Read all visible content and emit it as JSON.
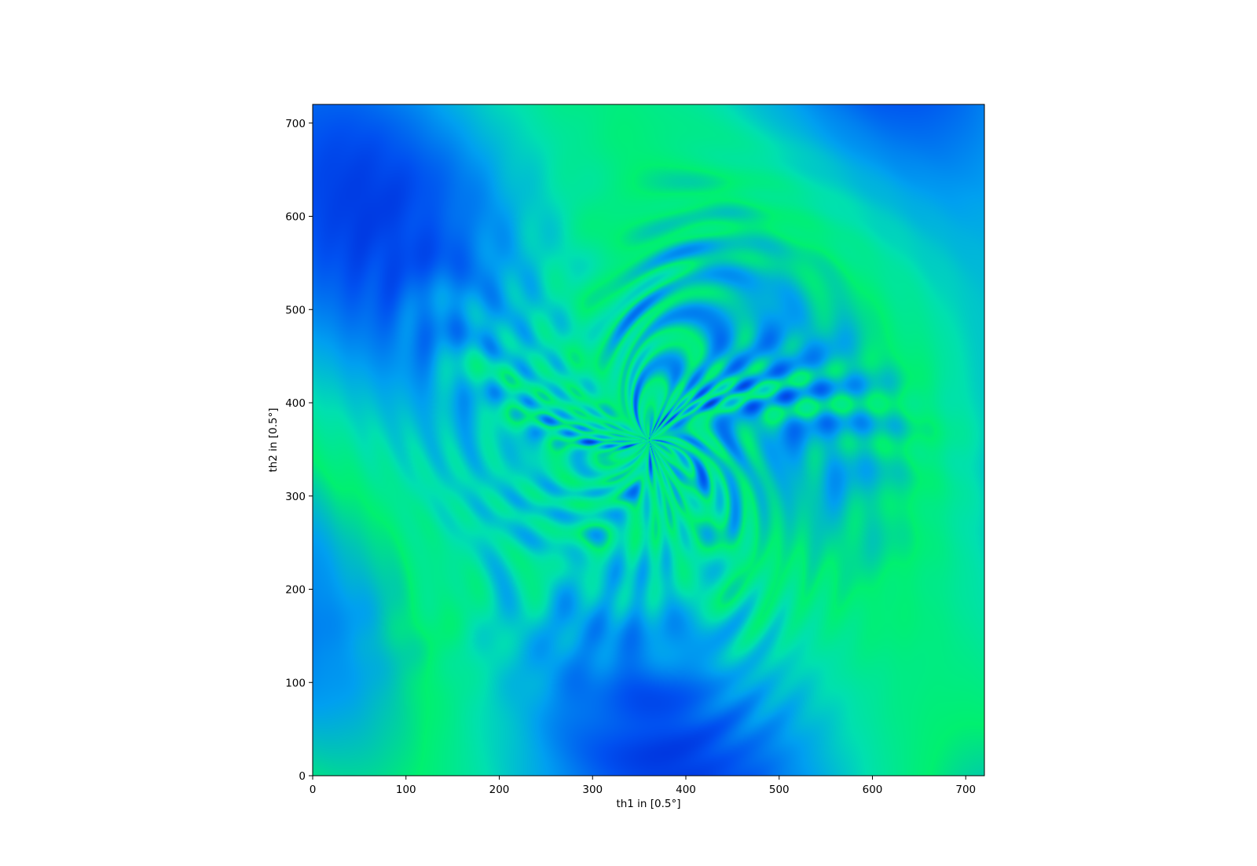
{
  "chart_data": {
    "type": "heatmap",
    "title": "",
    "xlabel": "th1 in [0.5°]",
    "ylabel": "th2 in [0.5°]",
    "xlim": [
      0,
      720
    ],
    "ylim": [
      0,
      720
    ],
    "x_ticks": [
      0,
      100,
      200,
      300,
      400,
      500,
      600,
      700
    ],
    "y_ticks": [
      0,
      100,
      200,
      300,
      400,
      500,
      600,
      700
    ],
    "center": [
      360,
      360
    ],
    "colormap": [
      "#0010c8",
      "#0050f0",
      "#00a0f0",
      "#00e0b0",
      "#00f070",
      "#103060"
    ],
    "grid": false,
    "legend": "none"
  }
}
